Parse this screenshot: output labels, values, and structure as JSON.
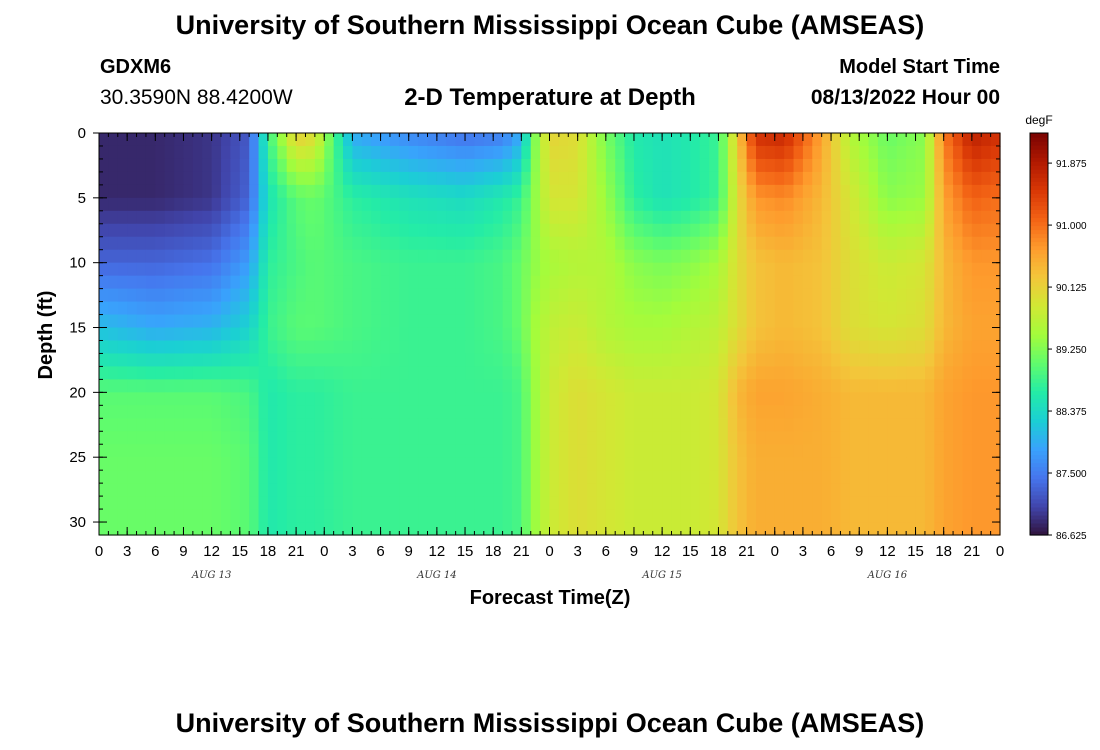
{
  "header": {
    "title": "University of Southern Mississippi Ocean Cube (AMSEAS)",
    "station_id": "GDXM6",
    "station_coords": "30.3590N  88.4200W",
    "subtitle": "2-D Temperature at Depth",
    "model_start_label": "Model Start Time",
    "model_start_value": "08/13/2022 Hour 00"
  },
  "footer": {
    "title": "University of Southern Mississippi Ocean Cube (AMSEAS)"
  },
  "chart_data": {
    "type": "heatmap",
    "title": "2-D Temperature at Depth",
    "xlabel": "Forecast Time(Z)",
    "ylabel": "Depth (ft)",
    "xlim": [
      0,
      96
    ],
    "ylim": [
      0,
      31
    ],
    "y_inverted": true,
    "x_ticks": [
      0,
      3,
      6,
      9,
      12,
      15,
      18,
      21,
      24,
      27,
      30,
      33,
      36,
      39,
      42,
      45,
      48,
      51,
      54,
      57,
      60,
      63,
      66,
      69,
      72,
      75,
      78,
      81,
      84,
      87,
      90,
      93,
      96
    ],
    "x_tick_labels": [
      "0",
      "3",
      "6",
      "9",
      "12",
      "15",
      "18",
      "21",
      "0",
      "3",
      "6",
      "9",
      "12",
      "15",
      "18",
      "21",
      "0",
      "3",
      "6",
      "9",
      "12",
      "15",
      "18",
      "21",
      "0",
      "3",
      "6",
      "9",
      "12",
      "15",
      "18",
      "21",
      "0"
    ],
    "day_labels": [
      {
        "label": "AUG 13",
        "x": 12
      },
      {
        "label": "AUG 14",
        "x": 36
      },
      {
        "label": "AUG 15",
        "x": 60
      },
      {
        "label": "AUG 16",
        "x": 84
      }
    ],
    "y_ticks": [
      0,
      5,
      10,
      15,
      20,
      25,
      30
    ],
    "y_tick_labels": [
      "0",
      "5",
      "10",
      "15",
      "20",
      "25",
      "30"
    ],
    "colorbar": {
      "unit": "degF",
      "min": 86.625,
      "max": 92.3,
      "ticks": [
        86.625,
        87.5,
        88.375,
        89.25,
        90.125,
        91.0,
        91.875
      ],
      "tick_labels": [
        "86.625",
        "87.500",
        "88.375",
        "89.250",
        "90.125",
        "91.000",
        "91.875"
      ],
      "palette": [
        "#30123b",
        "#4145ab",
        "#4675ed",
        "#39a2fc",
        "#1bcfd4",
        "#24eca6",
        "#61fc6c",
        "#a4fc3b",
        "#d1e834",
        "#f3c63a",
        "#fe9b2d",
        "#f36315",
        "#d93806",
        "#b11901",
        "#7a0402"
      ]
    },
    "x_nodes": [
      0,
      6,
      12,
      16,
      18,
      21,
      23,
      27,
      33,
      39,
      43,
      45,
      46,
      48,
      51,
      54,
      57,
      60,
      63,
      66,
      68,
      70,
      73,
      77,
      80,
      84,
      88,
      90,
      93,
      96
    ],
    "z_depth_0": [
      86.8,
      86.8,
      86.9,
      87.2,
      88.8,
      90.2,
      90.0,
      87.9,
      87.6,
      87.4,
      87.5,
      87.9,
      89.0,
      90.1,
      90.0,
      89.2,
      88.6,
      88.5,
      88.6,
      88.8,
      90.2,
      91.6,
      91.7,
      90.6,
      89.6,
      89.1,
      89.3,
      90.9,
      91.8,
      91.6
    ],
    "z_depth_5": [
      86.8,
      86.8,
      86.9,
      87.3,
      88.5,
      89.0,
      89.1,
      88.7,
      88.5,
      88.4,
      88.6,
      88.8,
      89.2,
      89.9,
      89.9,
      89.4,
      88.7,
      88.5,
      88.6,
      88.8,
      90.0,
      90.7,
      90.8,
      90.4,
      89.9,
      89.3,
      89.4,
      90.6,
      91.1,
      91.0
    ],
    "z_depth_10": [
      87.3,
      87.3,
      87.4,
      87.8,
      88.7,
      88.9,
      89.0,
      88.9,
      88.8,
      88.8,
      88.9,
      89.1,
      89.3,
      89.5,
      89.6,
      89.6,
      89.3,
      89.2,
      89.3,
      89.5,
      90.0,
      90.3,
      90.4,
      90.3,
      90.0,
      89.8,
      89.9,
      90.4,
      90.7,
      90.7
    ],
    "z_depth_15": [
      88.1,
      87.9,
      88.0,
      88.3,
      88.8,
      89.0,
      89.0,
      88.9,
      88.8,
      88.8,
      88.9,
      89.1,
      89.4,
      89.7,
      89.8,
      89.6,
      89.5,
      89.5,
      89.6,
      89.7,
      90.0,
      90.3,
      90.4,
      90.3,
      90.0,
      89.9,
      90.0,
      90.4,
      90.6,
      90.6
    ],
    "z_depth_20": [
      89.0,
      89.0,
      89.0,
      88.9,
      88.6,
      88.7,
      88.7,
      88.8,
      88.8,
      88.8,
      88.8,
      88.9,
      89.3,
      89.8,
      90.0,
      89.9,
      89.8,
      89.8,
      89.8,
      89.9,
      90.4,
      90.6,
      90.6,
      90.5,
      90.4,
      90.4,
      90.4,
      90.6,
      90.7,
      90.7
    ],
    "z_depth_25": [
      89.1,
      89.1,
      89.1,
      89.0,
      88.6,
      88.7,
      88.7,
      88.8,
      88.8,
      88.8,
      88.8,
      88.9,
      89.3,
      89.8,
      90.0,
      89.9,
      89.8,
      89.8,
      89.8,
      89.9,
      90.3,
      90.5,
      90.5,
      90.5,
      90.4,
      90.4,
      90.4,
      90.6,
      90.7,
      90.7
    ],
    "z_depth_31": [
      89.1,
      89.1,
      89.1,
      89.0,
      88.6,
      88.7,
      88.7,
      88.8,
      88.8,
      88.8,
      88.8,
      88.9,
      89.3,
      89.8,
      90.0,
      89.9,
      89.8,
      89.8,
      89.8,
      89.9,
      90.3,
      90.5,
      90.5,
      90.5,
      90.4,
      90.4,
      90.4,
      90.6,
      90.7,
      90.7
    ]
  }
}
